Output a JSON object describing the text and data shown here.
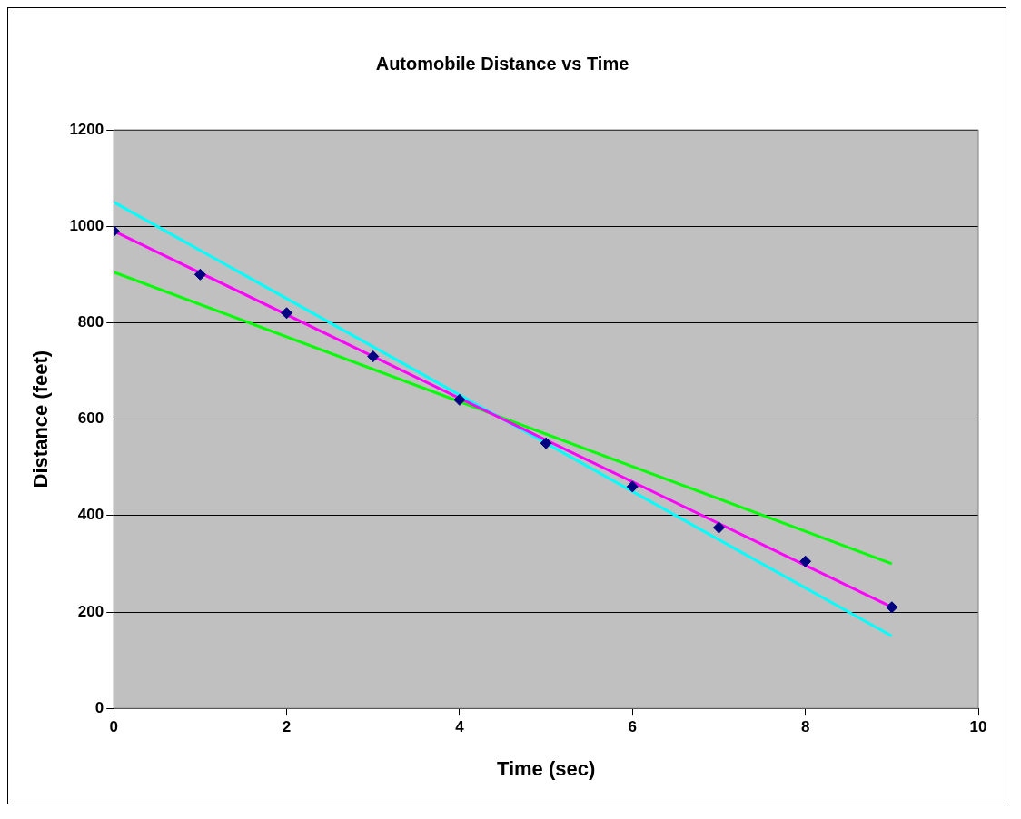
{
  "chart_data": {
    "type": "scatter",
    "title": "Automobile Distance vs Time",
    "xlabel": "Time (sec)",
    "ylabel": "Distance (feet)",
    "series": [
      {
        "marker": "diamond",
        "color": "#000080",
        "x": [
          0,
          1,
          2,
          3,
          4,
          5,
          6,
          7,
          8,
          9
        ],
        "values": [
          990,
          900,
          820,
          730,
          640,
          550,
          460,
          375,
          305,
          210
        ]
      },
      {
        "type": "line",
        "color": "#ff00ff",
        "x": [
          0,
          9
        ],
        "values": [
          990,
          210
        ]
      },
      {
        "type": "line",
        "color": "#00ffff",
        "x": [
          0,
          9
        ],
        "values": [
          1050,
          150
        ]
      },
      {
        "type": "line",
        "color": "#00ff00",
        "x": [
          0,
          9
        ],
        "values": [
          905,
          300
        ]
      }
    ],
    "xlim": [
      0,
      10
    ],
    "xticks": [
      0,
      2,
      4,
      6,
      8,
      10
    ],
    "ylim": [
      0,
      1200
    ],
    "yticks": [
      0,
      200,
      400,
      600,
      800,
      1000,
      1200
    ],
    "grid": "y",
    "line_style": "solid"
  }
}
